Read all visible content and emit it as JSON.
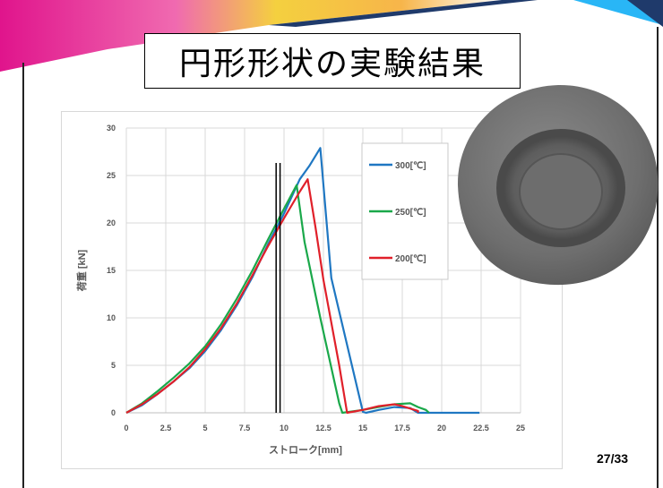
{
  "slide": {
    "title": "円形形状の実験結果",
    "page_number": "27/33"
  },
  "colors": {
    "accent_magenta": "#e0148c",
    "accent_yellow": "#f4d03f",
    "accent_navy": "#1f3a6b",
    "accent_cyan": "#29b6f6"
  },
  "chart_data": {
    "type": "line",
    "xlabel": "ストローク[mm]",
    "ylabel": "荷重 [kN]",
    "xlim": [
      0,
      25
    ],
    "ylim": [
      0,
      30
    ],
    "xticks": [
      "0",
      "2.5",
      "5",
      "7.5",
      "10",
      "12.5",
      "15",
      "17.5",
      "20",
      "22.5",
      "25"
    ],
    "yticks": [
      "0",
      "5",
      "10",
      "15",
      "20",
      "25",
      "30"
    ],
    "grid": true,
    "legend_position": "right",
    "series": [
      {
        "name": "300[℃]",
        "color": "#1f77c2",
        "points": [
          [
            0,
            0
          ],
          [
            1,
            0.8
          ],
          [
            2,
            2.0
          ],
          [
            3,
            3.3
          ],
          [
            4,
            4.7
          ],
          [
            5,
            6.5
          ],
          [
            6,
            8.7
          ],
          [
            7,
            11.3
          ],
          [
            8,
            14.3
          ],
          [
            9,
            17.8
          ],
          [
            10,
            21.0
          ],
          [
            11,
            24.6
          ],
          [
            11.6,
            26.0
          ],
          [
            12.3,
            27.9
          ],
          [
            13.0,
            14.2
          ],
          [
            15.0,
            0.1
          ],
          [
            15.2,
            0
          ],
          [
            16,
            0.3
          ],
          [
            17,
            0.6
          ],
          [
            18,
            0.5
          ],
          [
            18.5,
            0
          ],
          [
            20,
            0
          ],
          [
            22.4,
            0
          ]
        ]
      },
      {
        "name": "250[℃]",
        "color": "#1aa84a",
        "points": [
          [
            0,
            0
          ],
          [
            1,
            1.0
          ],
          [
            2,
            2.3
          ],
          [
            3,
            3.7
          ],
          [
            4,
            5.2
          ],
          [
            5,
            7.0
          ],
          [
            6,
            9.3
          ],
          [
            7,
            12.0
          ],
          [
            8,
            15.0
          ],
          [
            9,
            18.3
          ],
          [
            10,
            21.5
          ],
          [
            10.8,
            24.0
          ],
          [
            11.3,
            18.0
          ],
          [
            12.3,
            10.0
          ],
          [
            13.5,
            1.0
          ],
          [
            13.7,
            0
          ],
          [
            15,
            0.3
          ],
          [
            16,
            0.6
          ],
          [
            17,
            0.9
          ],
          [
            18,
            1.0
          ],
          [
            18.5,
            0.6
          ],
          [
            19.0,
            0.3
          ],
          [
            19.2,
            0
          ]
        ]
      },
      {
        "name": "200[℃]",
        "color": "#e0202a",
        "points": [
          [
            0,
            0
          ],
          [
            1,
            0.9
          ],
          [
            2,
            2.0
          ],
          [
            3,
            3.3
          ],
          [
            4,
            4.8
          ],
          [
            5,
            6.7
          ],
          [
            6,
            8.9
          ],
          [
            7,
            11.5
          ],
          [
            8,
            14.5
          ],
          [
            9,
            17.6
          ],
          [
            10,
            20.5
          ],
          [
            11,
            23.3
          ],
          [
            11.5,
            24.6
          ],
          [
            12.0,
            19.5
          ],
          [
            12.5,
            14.0
          ],
          [
            13.5,
            5.0
          ],
          [
            14.0,
            0
          ],
          [
            15,
            0.3
          ],
          [
            16,
            0.7
          ],
          [
            17,
            0.9
          ],
          [
            17.5,
            0.7
          ],
          [
            18.5,
            0.2
          ],
          [
            18.5,
            0
          ]
        ]
      }
    ],
    "reference_lines_x": [
      9.5,
      9.75
    ]
  }
}
